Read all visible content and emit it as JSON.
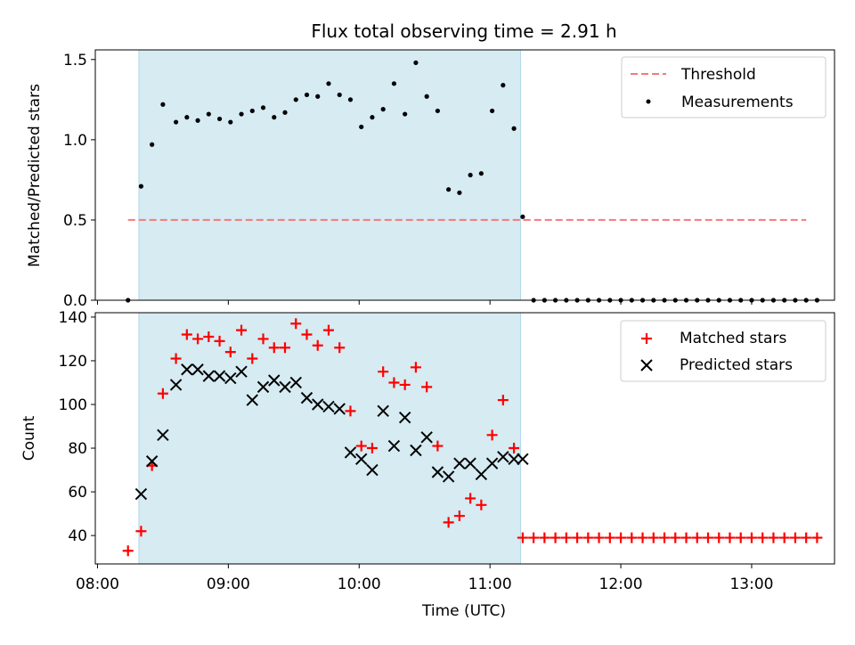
{
  "chart_data": [
    {
      "type": "scatter",
      "title": "Flux total observing time = 2.91 h",
      "xlabel": "",
      "ylabel": "Matched/Predicted stars",
      "ylim": [
        0,
        1.56
      ],
      "xlim": [
        "07:59",
        "13:38"
      ],
      "yticks": [
        "0.0",
        "0.5",
        "1.0",
        "1.5"
      ],
      "shaded_interval": [
        "08:19",
        "11:14"
      ],
      "legend_position": "top-right",
      "threshold": {
        "name": "Threshold",
        "color": "#f47a7a",
        "x": [
          "08:14",
          "13:25"
        ],
        "y": 0.5
      },
      "series": [
        {
          "name": "Measurements",
          "color": "#000000",
          "x": [
            "08:14",
            "08:20",
            "08:25",
            "08:30",
            "08:36",
            "08:41",
            "08:46",
            "08:51",
            "08:56",
            "09:01",
            "09:06",
            "09:11",
            "09:16",
            "09:21",
            "09:26",
            "09:31",
            "09:36",
            "09:41",
            "09:46",
            "09:51",
            "09:56",
            "10:01",
            "10:06",
            "10:11",
            "10:16",
            "10:21",
            "10:26",
            "10:31",
            "10:36",
            "10:41",
            "10:46",
            "10:51",
            "10:56",
            "11:01",
            "11:06",
            "11:11",
            "11:15",
            "11:20",
            "11:25",
            "11:30",
            "11:35",
            "11:40",
            "11:45",
            "11:50",
            "11:55",
            "12:00",
            "12:05",
            "12:10",
            "12:15",
            "12:20",
            "12:25",
            "12:30",
            "12:35",
            "12:40",
            "12:45",
            "12:50",
            "12:55",
            "13:00",
            "13:05",
            "13:10",
            "13:15",
            "13:20",
            "13:25",
            "13:30"
          ],
          "y": [
            0.0,
            0.71,
            0.97,
            1.22,
            1.11,
            1.14,
            1.12,
            1.16,
            1.13,
            1.11,
            1.16,
            1.18,
            1.2,
            1.14,
            1.17,
            1.25,
            1.28,
            1.27,
            1.35,
            1.28,
            1.25,
            1.08,
            1.14,
            1.19,
            1.35,
            1.16,
            1.48,
            1.27,
            1.18,
            0.69,
            0.67,
            0.78,
            0.79,
            1.18,
            1.34,
            1.07,
            0.52,
            0.0,
            0.0,
            0.0,
            0.0,
            0.0,
            0.0,
            0.0,
            0.0,
            0.0,
            0.0,
            0.0,
            0.0,
            0.0,
            0.0,
            0.0,
            0.0,
            0.0,
            0.0,
            0.0,
            0.0,
            0.0,
            0.0,
            0.0,
            0.0,
            0.0,
            0.0,
            0.0
          ]
        }
      ]
    },
    {
      "type": "scatter",
      "title": "",
      "xlabel": "Time (UTC)",
      "ylabel": "Count",
      "ylim": [
        27,
        142
      ],
      "xlim": [
        "07:59",
        "13:38"
      ],
      "yticks": [
        "40",
        "60",
        "80",
        "100",
        "120",
        "140"
      ],
      "xticks": [
        "08:00",
        "09:00",
        "10:00",
        "11:00",
        "12:00",
        "13:00"
      ],
      "shaded_interval": [
        "08:19",
        "11:14"
      ],
      "legend_position": "top-right",
      "series": [
        {
          "name": "Matched stars",
          "marker": "+",
          "color": "#ff0000",
          "x": [
            "08:14",
            "08:20",
            "08:25",
            "08:30",
            "08:36",
            "08:41",
            "08:46",
            "08:51",
            "08:56",
            "09:01",
            "09:06",
            "09:11",
            "09:16",
            "09:21",
            "09:26",
            "09:31",
            "09:36",
            "09:41",
            "09:46",
            "09:51",
            "09:56",
            "10:01",
            "10:06",
            "10:11",
            "10:16",
            "10:21",
            "10:26",
            "10:31",
            "10:36",
            "10:41",
            "10:46",
            "10:51",
            "10:56",
            "11:01",
            "11:06",
            "11:11",
            "11:15",
            "11:20",
            "11:25",
            "11:30",
            "11:35",
            "11:40",
            "11:45",
            "11:50",
            "11:55",
            "12:00",
            "12:05",
            "12:10",
            "12:15",
            "12:20",
            "12:25",
            "12:30",
            "12:35",
            "12:40",
            "12:45",
            "12:50",
            "12:55",
            "13:00",
            "13:05",
            "13:10",
            "13:15",
            "13:20",
            "13:25",
            "13:30"
          ],
          "y": [
            33,
            42,
            72,
            105,
            121,
            132,
            130,
            131,
            129,
            124,
            134,
            121,
            130,
            126,
            126,
            137,
            132,
            127,
            134,
            126,
            97,
            81,
            80,
            115,
            110,
            109,
            117,
            108,
            81,
            46,
            49,
            57,
            54,
            86,
            102,
            80,
            39,
            39,
            39,
            39,
            39,
            39,
            39,
            39,
            39,
            39,
            39,
            39,
            39,
            39,
            39,
            39,
            39,
            39,
            39,
            39,
            39,
            39,
            39,
            39,
            39,
            39,
            39,
            39
          ]
        },
        {
          "name": "Predicted stars",
          "marker": "x",
          "color": "#000000",
          "x": [
            "08:20",
            "08:25",
            "08:30",
            "08:36",
            "08:41",
            "08:46",
            "08:51",
            "08:56",
            "09:01",
            "09:06",
            "09:11",
            "09:16",
            "09:21",
            "09:26",
            "09:31",
            "09:36",
            "09:41",
            "09:46",
            "09:51",
            "09:56",
            "10:01",
            "10:06",
            "10:11",
            "10:16",
            "10:21",
            "10:26",
            "10:31",
            "10:36",
            "10:41",
            "10:46",
            "10:51",
            "10:56",
            "11:01",
            "11:06",
            "11:11",
            "11:15"
          ],
          "y": [
            59,
            74,
            86,
            109,
            116,
            116,
            113,
            113,
            112,
            115,
            102,
            108,
            111,
            108,
            110,
            103,
            100,
            99,
            98,
            78,
            75,
            70,
            97,
            81,
            94,
            79,
            85,
            69,
            67,
            73,
            73,
            68,
            73,
            76,
            75,
            75
          ]
        }
      ]
    }
  ]
}
